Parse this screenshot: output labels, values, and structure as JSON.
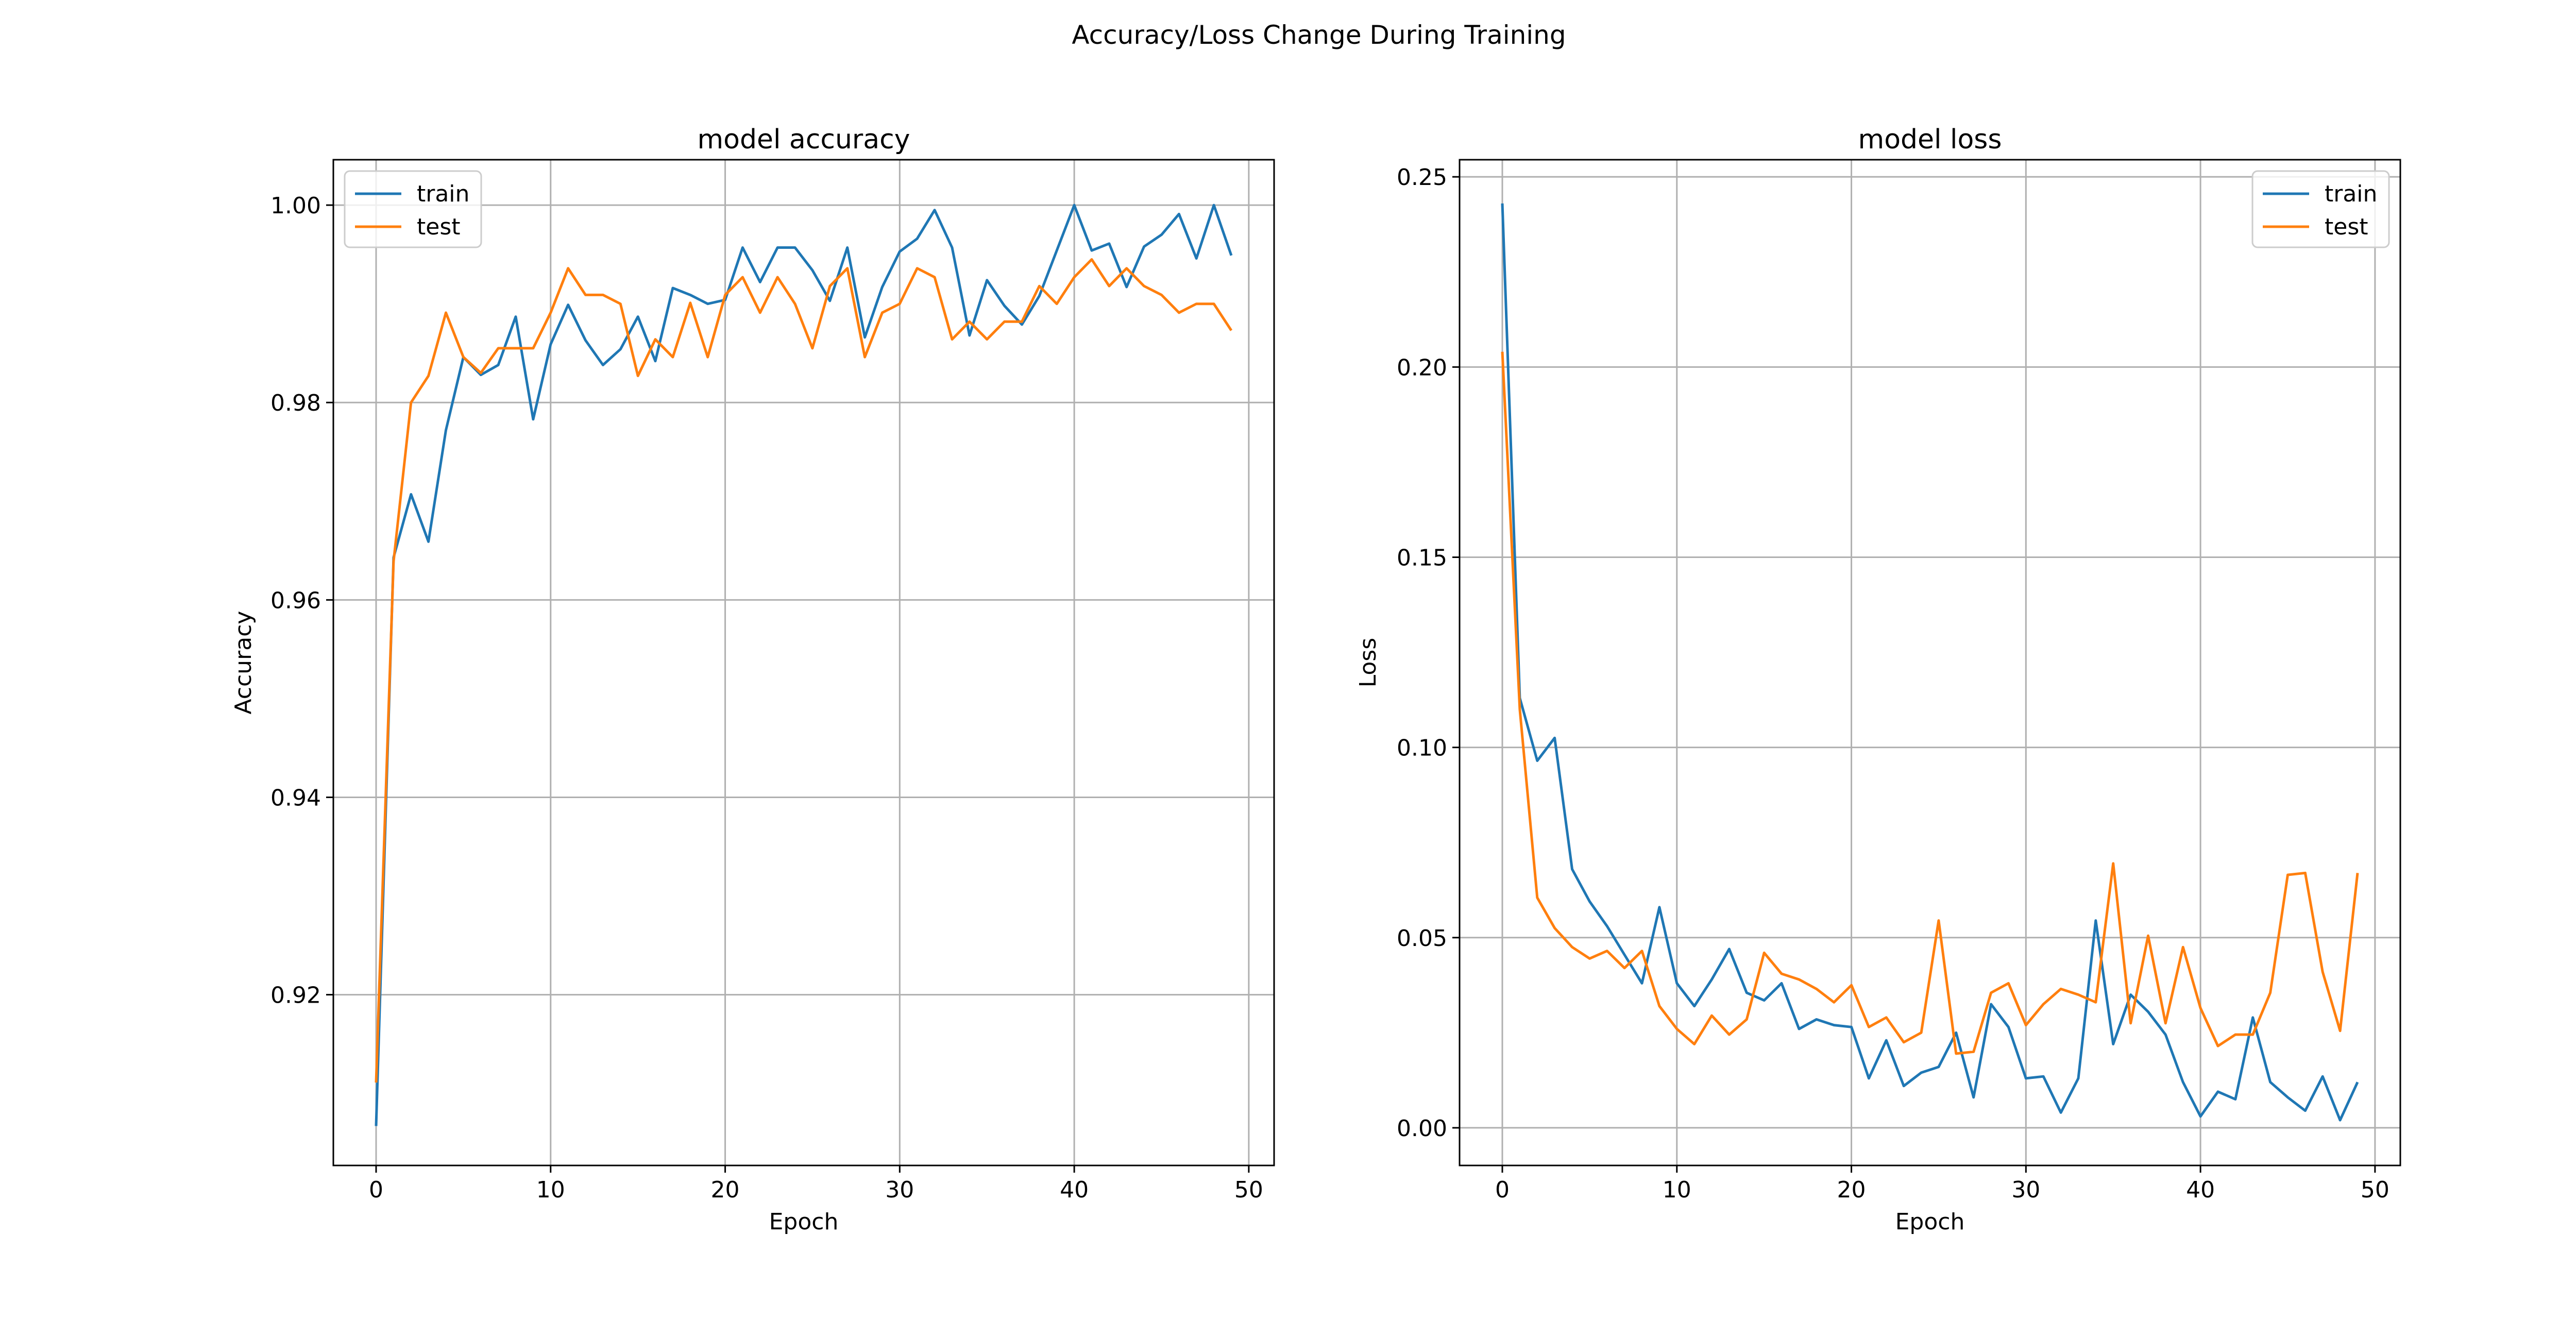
{
  "figure": {
    "suptitle": "Accuracy/Loss Change During Training"
  },
  "colors": {
    "train": "#1f77b4",
    "test": "#ff7f0e",
    "grid": "#b0b0b0",
    "frame": "#000000"
  },
  "chart_data": [
    {
      "type": "line",
      "title": "model accuracy",
      "xlabel": "Epoch",
      "ylabel": "Accuracy",
      "xlim": [
        -2.45,
        51.45
      ],
      "ylim": [
        0.9027,
        1.0046
      ],
      "xticks": [
        0,
        10,
        20,
        30,
        40,
        50
      ],
      "xtick_labels": [
        "0",
        "10",
        "20",
        "30",
        "40",
        "50"
      ],
      "yticks": [
        0.92,
        0.94,
        0.96,
        0.98,
        1.0
      ],
      "ytick_labels": [
        "0.92",
        "0.94",
        "0.96",
        "0.98",
        "1.00"
      ],
      "grid": true,
      "legend_position": "upper left",
      "x": [
        0,
        1,
        2,
        3,
        4,
        5,
        6,
        7,
        8,
        9,
        10,
        11,
        12,
        13,
        14,
        15,
        16,
        17,
        18,
        19,
        20,
        21,
        22,
        23,
        24,
        25,
        26,
        27,
        28,
        29,
        30,
        31,
        32,
        33,
        34,
        35,
        36,
        37,
        38,
        39,
        40,
        41,
        42,
        43,
        44,
        45,
        46,
        47,
        48,
        49
      ],
      "series": [
        {
          "name": "train",
          "color_key": "train",
          "values": [
            0.9067,
            0.9643,
            0.9707,
            0.9659,
            0.9772,
            0.9846,
            0.9828,
            0.9838,
            0.9887,
            0.9783,
            0.9859,
            0.9899,
            0.9863,
            0.9838,
            0.9854,
            0.9887,
            0.9842,
            0.9916,
            0.9909,
            0.99,
            0.9904,
            0.9957,
            0.9922,
            0.9957,
            0.9957,
            0.9934,
            0.9903,
            0.9957,
            0.9866,
            0.9917,
            0.9953,
            0.9966,
            0.9995,
            0.9957,
            0.9868,
            0.9924,
            0.9898,
            0.9879,
            0.9908,
            0.9954,
            1.0,
            0.9954,
            0.9961,
            0.9917,
            0.9958,
            0.997,
            0.9991,
            0.9946,
            1.0,
            0.9949
          ]
        },
        {
          "name": "test",
          "color_key": "test",
          "values": [
            0.9111,
            0.9639,
            0.98,
            0.9827,
            0.9891,
            0.9846,
            0.983,
            0.9855,
            0.9855,
            0.9855,
            0.9891,
            0.9936,
            0.9909,
            0.9909,
            0.99,
            0.9827,
            0.9864,
            0.9846,
            0.9901,
            0.9846,
            0.9909,
            0.9927,
            0.9891,
            0.9927,
            0.99,
            0.9855,
            0.9918,
            0.9936,
            0.9846,
            0.9891,
            0.99,
            0.9936,
            0.9927,
            0.9864,
            0.9882,
            0.9864,
            0.9882,
            0.9882,
            0.9918,
            0.99,
            0.9927,
            0.9945,
            0.9918,
            0.9936,
            0.9918,
            0.9909,
            0.9891,
            0.99,
            0.99,
            0.9873
          ]
        }
      ]
    },
    {
      "type": "line",
      "title": "model loss",
      "xlabel": "Epoch",
      "ylabel": "Loss",
      "xlim": [
        -2.45,
        51.45
      ],
      "ylim": [
        -0.0099,
        0.2545
      ],
      "xticks": [
        0,
        10,
        20,
        30,
        40,
        50
      ],
      "xtick_labels": [
        "0",
        "10",
        "20",
        "30",
        "40",
        "50"
      ],
      "yticks": [
        0.0,
        0.05,
        0.1,
        0.15,
        0.2,
        0.25
      ],
      "ytick_labels": [
        "0.00",
        "0.05",
        "0.10",
        "0.15",
        "0.20",
        "0.25"
      ],
      "grid": true,
      "legend_position": "upper right",
      "x": [
        0,
        1,
        2,
        3,
        4,
        5,
        6,
        7,
        8,
        9,
        10,
        11,
        12,
        13,
        14,
        15,
        16,
        17,
        18,
        19,
        20,
        21,
        22,
        23,
        24,
        25,
        26,
        27,
        28,
        29,
        30,
        31,
        32,
        33,
        34,
        35,
        36,
        37,
        38,
        39,
        40,
        41,
        42,
        43,
        44,
        45,
        46,
        47,
        48,
        49
      ],
      "series": [
        {
          "name": "train",
          "color_key": "train",
          "values": [
            0.243,
            0.113,
            0.0965,
            0.1025,
            0.068,
            0.0595,
            0.053,
            0.0455,
            0.038,
            0.058,
            0.038,
            0.032,
            0.039,
            0.047,
            0.0355,
            0.0335,
            0.038,
            0.026,
            0.0285,
            0.027,
            0.0265,
            0.013,
            0.023,
            0.011,
            0.0145,
            0.016,
            0.025,
            0.008,
            0.0325,
            0.0265,
            0.013,
            0.0135,
            0.004,
            0.013,
            0.0545,
            0.022,
            0.035,
            0.0305,
            0.0245,
            0.012,
            0.003,
            0.0095,
            0.0075,
            0.029,
            0.012,
            0.008,
            0.0045,
            0.0135,
            0.002,
            0.012
          ]
        },
        {
          "name": "test",
          "color_key": "test",
          "values": [
            0.204,
            0.11,
            0.0605,
            0.0525,
            0.0475,
            0.0445,
            0.0465,
            0.042,
            0.0465,
            0.032,
            0.026,
            0.022,
            0.0295,
            0.0245,
            0.0285,
            0.046,
            0.0405,
            0.039,
            0.0365,
            0.033,
            0.0375,
            0.0265,
            0.029,
            0.0225,
            0.025,
            0.0545,
            0.0195,
            0.02,
            0.0355,
            0.038,
            0.027,
            0.0325,
            0.0365,
            0.035,
            0.033,
            0.0695,
            0.0275,
            0.0505,
            0.0275,
            0.0475,
            0.0315,
            0.0215,
            0.0245,
            0.0245,
            0.0355,
            0.0665,
            0.067,
            0.041,
            0.0255,
            0.067
          ]
        }
      ]
    }
  ]
}
